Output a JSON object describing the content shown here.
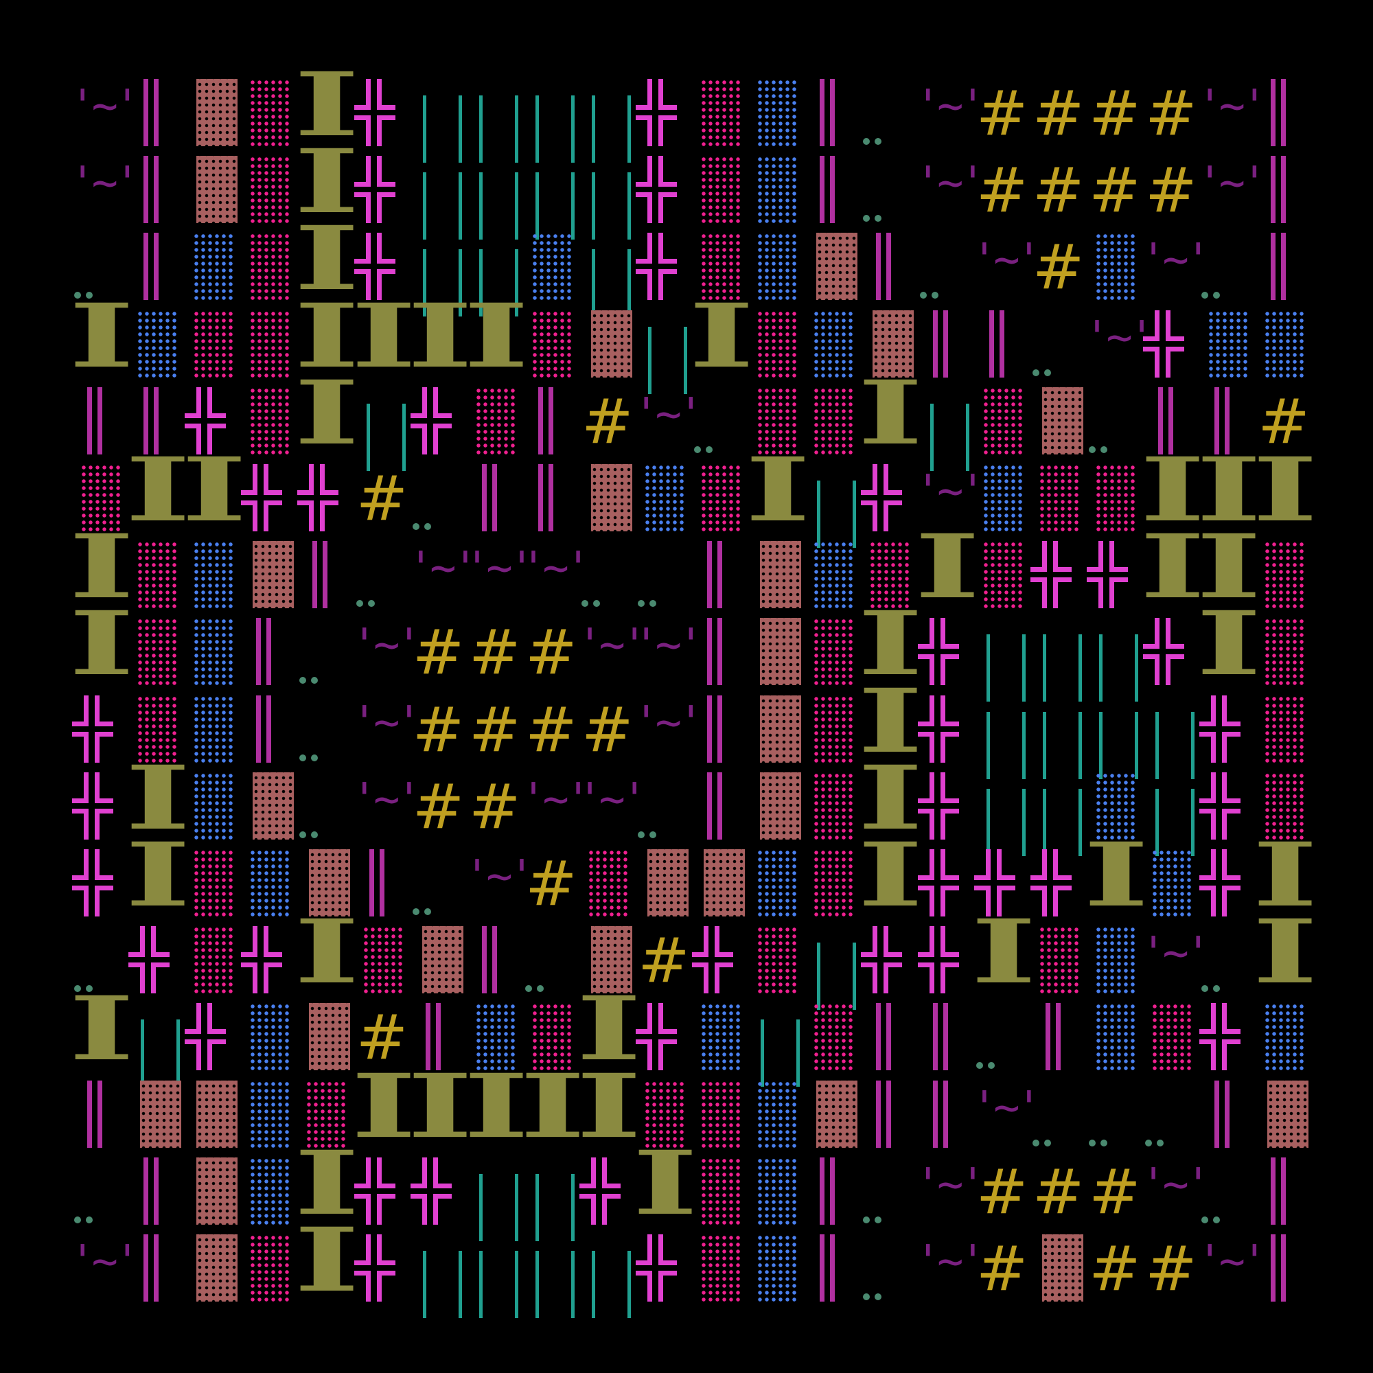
{
  "tiles": {
    "~": {
      "kind": "tilde",
      "glyph": "'~'",
      "color": "#7a2080"
    },
    "|": {
      "kind": "bars",
      "glyph": "║",
      "color": "#b030a0"
    },
    "B": {
      "kind": "brown",
      "glyph": "▓",
      "color": "#a86060"
    },
    "P": {
      "kind": "dots",
      "glyph": "░",
      "color": "#f02090"
    },
    "L": {
      "kind": "dots",
      "glyph": "░",
      "color": "#4a80f0"
    },
    "T": {
      "kind": "tee",
      "glyph": "I",
      "color": "#8a8a40"
    },
    "+": {
      "kind": "cross",
      "glyph": "╬",
      "color": "#e040d0"
    },
    "G": {
      "kind": "teal",
      "glyph": "│ │",
      "color": "#20a090"
    },
    "#": {
      "kind": "hash",
      "glyph": "#",
      "color": "#c0a020"
    },
    ".": {
      "kind": "pair",
      "glyph": "..",
      "color": "#4a8a70"
    },
    "_": {
      "kind": "empty",
      "glyph": "",
      "color": "#000000"
    }
  },
  "rows": [
    "~|BPT+GGGG+PL|.~####~|",
    "~|BPT+GGGG+PL|.~####~|",
    ".|LPT+GGLG+PLB|.~#L~.|",
    "TLPPTTTTPBGTPLB||.~+LL",
    "||+PTG+P|#~.PPTGPB.||#",
    "PTT++#.||BLPTG+~LPPTTT",
    "TPLB|.~~~..|BLPTP++TTP",
    "TPL|.~###~~|BPT+GGG+TP",
    "+PL|.~####~|BPT+GGGG+P",
    "+TLB.~##~~.|BPT+GGLG+P",
    "+TPLB|.~#PBBLPT+++TL+T",
    ".+P+TPB|.B#+PG++TPL~.T",
    "TG+LB#|LPT+LGP||.|LP+L",
    "|BBLPTTTTTPPLB||~...|B",
    ".|BLT++GG+TPL|.~###~.|",
    "~|BPT+GGGG+PL|.~#B##~|"
  ]
}
